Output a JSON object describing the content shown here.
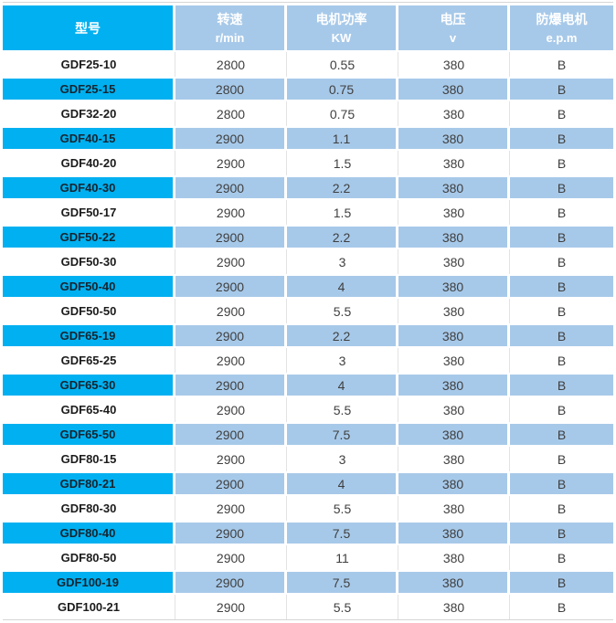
{
  "colors": {
    "accent_cyan": "#00b0f0",
    "row_light_blue": "#a7c9e9",
    "header_text": "#ffffff",
    "hairline_gray": "#d5d5d5"
  },
  "chart_data": {
    "type": "table",
    "columns": [
      {
        "label": "型号",
        "unit": ""
      },
      {
        "label": "转速",
        "unit": "r/min"
      },
      {
        "label": "电机功率",
        "unit": "KW"
      },
      {
        "label": "电压",
        "unit": "v"
      },
      {
        "label": "防爆电机",
        "unit": "e.p.m"
      }
    ],
    "rows": [
      [
        "GDF25-10",
        "2800",
        "0.55",
        "380",
        "B"
      ],
      [
        "GDF25-15",
        "2800",
        "0.75",
        "380",
        "B"
      ],
      [
        "GDF32-20",
        "2800",
        "0.75",
        "380",
        "B"
      ],
      [
        "GDF40-15",
        "2900",
        "1.1",
        "380",
        "B"
      ],
      [
        "GDF40-20",
        "2900",
        "1.5",
        "380",
        "B"
      ],
      [
        "GDF40-30",
        "2900",
        "2.2",
        "380",
        "B"
      ],
      [
        "GDF50-17",
        "2900",
        "1.5",
        "380",
        "B"
      ],
      [
        "GDF50-22",
        "2900",
        "2.2",
        "380",
        "B"
      ],
      [
        "GDF50-30",
        "2900",
        "3",
        "380",
        "B"
      ],
      [
        "GDF50-40",
        "2900",
        "4",
        "380",
        "B"
      ],
      [
        "GDF50-50",
        "2900",
        "5.5",
        "380",
        "B"
      ],
      [
        "GDF65-19",
        "2900",
        "2.2",
        "380",
        "B"
      ],
      [
        "GDF65-25",
        "2900",
        "3",
        "380",
        "B"
      ],
      [
        "GDF65-30",
        "2900",
        "4",
        "380",
        "B"
      ],
      [
        "GDF65-40",
        "2900",
        "5.5",
        "380",
        "B"
      ],
      [
        "GDF65-50",
        "2900",
        "7.5",
        "380",
        "B"
      ],
      [
        "GDF80-15",
        "2900",
        "3",
        "380",
        "B"
      ],
      [
        "GDF80-21",
        "2900",
        "4",
        "380",
        "B"
      ],
      [
        "GDF80-30",
        "2900",
        "5.5",
        "380",
        "B"
      ],
      [
        "GDF80-40",
        "2900",
        "7.5",
        "380",
        "B"
      ],
      [
        "GDF80-50",
        "2900",
        "11",
        "380",
        "B"
      ],
      [
        "GDF100-19",
        "2900",
        "7.5",
        "380",
        "B"
      ],
      [
        "GDF100-21",
        "2900",
        "5.5",
        "380",
        "B"
      ]
    ]
  }
}
